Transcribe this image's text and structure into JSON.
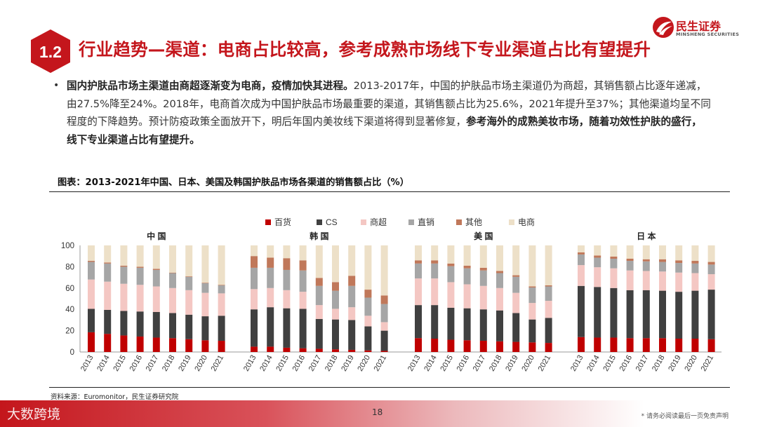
{
  "header": {
    "section_number": "1.2",
    "title": "行业趋势—渠道：电商占比较高，参考成熟市场线下专业渠道占比有望提升",
    "brand_cn": "民生证券",
    "brand_en": "MINSHENG SECURITIES"
  },
  "body": {
    "bold_lead": "国内护肤品市场主渠道由商超逐渐变为电商，疫情加快其进程。",
    "text_main": "2013-2017年，中国的护肤品市场主渠道仍为商超，其销售额占比逐年递减，由27.5%降至24%。2018年，电商首次成为中国护肤品市场最重要的渠道，其销售额占比为25.6%，2021年提升至37%；其他渠道均呈不同程度的下降趋势。预计防疫政策全面放开下，明后年国内美妆线下渠道将得到显著修复，",
    "bold_tail": "参考海外的成熟美妆市场，随着功效性护肤的盛行，线下专业渠道占比有望提升。"
  },
  "figure": {
    "title": "图表：2013-2021年中国、日本、美国及韩国护肤品市场各渠道的销售额占比（%）",
    "source": "资料来源：Euromonitor，民生证券研究院"
  },
  "chart_data": {
    "type": "bar",
    "stacked": true,
    "ylim": [
      0,
      100
    ],
    "yticks": [
      0,
      20,
      40,
      60,
      80,
      100
    ],
    "legend_position": "top",
    "x": [
      "2013",
      "2014",
      "2015",
      "2016",
      "2017",
      "2018",
      "2019",
      "2020",
      "2021"
    ],
    "series_meta": [
      {
        "name": "百货",
        "color": "#c00000"
      },
      {
        "name": "CS",
        "color": "#404040"
      },
      {
        "name": "商超",
        "color": "#f4c7c3"
      },
      {
        "name": "直销",
        "color": "#a6a6a6"
      },
      {
        "name": "其他",
        "color": "#c0785a"
      },
      {
        "name": "电商",
        "color": "#ede0c8"
      }
    ],
    "groups": [
      {
        "name": "中 国",
        "series": [
          {
            "name": "百货",
            "values": [
              18.5,
              17,
              15.5,
              14.5,
              13.5,
              13,
              12,
              11,
              10.5
            ]
          },
          {
            "name": "CS",
            "values": [
              22,
              22.5,
              23,
              23.5,
              24,
              23.5,
              23,
              22.5,
              23.5
            ]
          },
          {
            "name": "商超",
            "values": [
              27.5,
              26.5,
              25.5,
              25,
              24,
              23.5,
              23,
              22,
              21
            ]
          },
          {
            "name": "直销",
            "values": [
              16.5,
              17,
              16,
              16,
              15.5,
              14,
              12.5,
              9,
              7.5
            ]
          },
          {
            "name": "其他",
            "values": [
              1,
              1,
              1,
              1,
              1,
              0.5,
              0.5,
              0.5,
              0.5
            ]
          },
          {
            "name": "电商",
            "values": [
              14.5,
              16,
              19,
              20,
              22,
              25.5,
              29,
              35,
              37
            ]
          }
        ]
      },
      {
        "name": "韩 国",
        "series": [
          {
            "name": "百货",
            "values": [
              5,
              5,
              4,
              3.5,
              3,
              2.5,
              2,
              1.5,
              1
            ]
          },
          {
            "name": "CS",
            "values": [
              35,
              37,
              37,
              37,
              28,
              28,
              28,
              22.5,
              19
            ]
          },
          {
            "name": "商超",
            "values": [
              19,
              18,
              17,
              16,
              13,
              10,
              12,
              10,
              8
            ]
          },
          {
            "name": "直销",
            "values": [
              20,
              19,
              19,
              20,
              18,
              17,
              20,
              17,
              17
            ]
          },
          {
            "name": "其他",
            "values": [
              11,
              9.5,
              11,
              9.5,
              7.5,
              8,
              9.5,
              7.5,
              8
            ]
          },
          {
            "name": "电商",
            "values": [
              10,
              11.5,
              12,
              14,
              30.5,
              34.5,
              28.5,
              41.5,
              47
            ]
          }
        ]
      },
      {
        "name": "美 国",
        "series": [
          {
            "name": "百货",
            "values": [
              13,
              12.5,
              11.5,
              11,
              10.5,
              10,
              9.5,
              9,
              8.5
            ]
          },
          {
            "name": "CS",
            "values": [
              31,
              31.5,
              30,
              30,
              29.5,
              29,
              27,
              21.5,
              23.5
            ]
          },
          {
            "name": "商超",
            "values": [
              25,
              25,
              24,
              22.5,
              22,
              21,
              19,
              15.5,
              16
            ]
          },
          {
            "name": "直销",
            "values": [
              14,
              14,
              15,
              15,
              14.5,
              14,
              15,
              14.5,
              13.5
            ]
          },
          {
            "name": "其他",
            "values": [
              3,
              3,
              2.5,
              2.5,
              2.5,
              2,
              1.5,
              1,
              1
            ]
          },
          {
            "name": "电商",
            "values": [
              14,
              14,
              17,
              19,
              21,
              24,
              28,
              38.5,
              37.5
            ]
          }
        ]
      },
      {
        "name": "日 本",
        "series": [
          {
            "name": "百货",
            "values": [
              14,
              13.5,
              13.5,
              13,
              13,
              13,
              12.5,
              12.5,
              12
            ]
          },
          {
            "name": "CS",
            "values": [
              48,
              47.5,
              46.5,
              45,
              45,
              44.5,
              44,
              45,
              46.5
            ]
          },
          {
            "name": "商超",
            "values": [
              19.5,
              18.5,
              18.5,
              18.5,
              18,
              18,
              18,
              16.5,
              14.5
            ]
          },
          {
            "name": "直销",
            "values": [
              10,
              9,
              9,
              9,
              9,
              9,
              9,
              9,
              9
            ]
          },
          {
            "name": "其他",
            "values": [
              2,
              2,
              2,
              2,
              2,
              2.5,
              2.5,
              2.5,
              2.5
            ]
          },
          {
            "name": "电商",
            "values": [
              6.5,
              9.5,
              10.5,
              12.5,
              13,
              13,
              14,
              14.5,
              15.5
            ]
          }
        ]
      }
    ]
  },
  "footer": {
    "watermark": "大数跨境",
    "page_number": "18",
    "disclaimer": "* 请务必阅读最后一页免责声明"
  }
}
